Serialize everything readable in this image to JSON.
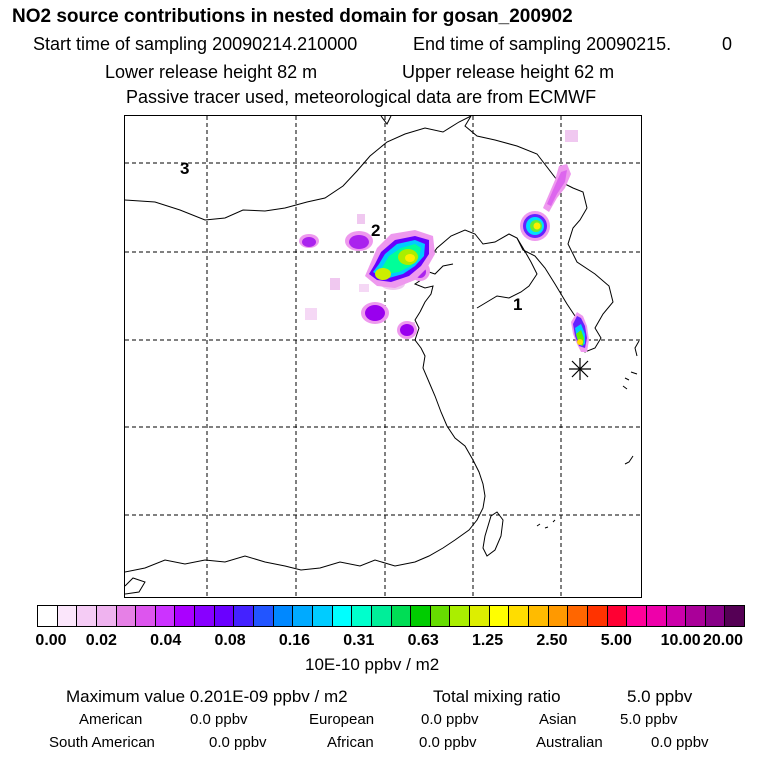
{
  "header": {
    "title": "NO2 source contributions in nested domain for gosan_200902",
    "start_label": "Start time of sampling 20090214.210000",
    "end_label": "End time of sampling 20090215.",
    "end_hour": "0",
    "lower_height": "Lower release height   82 m",
    "upper_height": "Upper release height   62 m",
    "tracer_note": "Passive tracer used, meteorological data are from ECMWF"
  },
  "map": {
    "labels": [
      "3",
      "2",
      "1"
    ],
    "receptor_icon": "asterisk-receptor-icon"
  },
  "colorbar": {
    "ticks": [
      "0.00",
      "0.02",
      "0.04",
      "0.08",
      "0.16",
      "0.31",
      "0.63",
      "1.25",
      "2.50",
      "5.00",
      "10.00",
      "20.00"
    ],
    "colors": [
      "#ffffff",
      "#fbe6fb",
      "#f5ccf5",
      "#efb3ef",
      "#e680e6",
      "#dd55ee",
      "#cc33ff",
      "#aa00ff",
      "#8800ff",
      "#6a00ff",
      "#4422ff",
      "#2255ff",
      "#0088ff",
      "#00aaff",
      "#00ccff",
      "#00ffff",
      "#00ffcc",
      "#00ee99",
      "#00dd55",
      "#00cc00",
      "#66dd00",
      "#aaee00",
      "#ddee00",
      "#ffff00",
      "#ffdd00",
      "#ffbb00",
      "#ff9900",
      "#ff6600",
      "#ff3300",
      "#ff0033",
      "#ff0099",
      "#ee00aa",
      "#cc00aa",
      "#aa0099",
      "#880088",
      "#550055"
    ],
    "units": "10E-10 ppbv / m2"
  },
  "stats": {
    "max_label": "Maximum value  0.201E-09 ppbv / m2",
    "total_label": "Total mixing ratio",
    "total_value": "5.0 ppbv",
    "sources": [
      {
        "name": "American",
        "value": "0.0 ppbv"
      },
      {
        "name": "European",
        "value": "0.0 ppbv"
      },
      {
        "name": "Asian",
        "value": "5.0 ppbv"
      },
      {
        "name": "South American",
        "value": "0.0 ppbv"
      },
      {
        "name": "African",
        "value": "0.0 ppbv"
      },
      {
        "name": "Australian",
        "value": "0.0 ppbv"
      }
    ]
  }
}
